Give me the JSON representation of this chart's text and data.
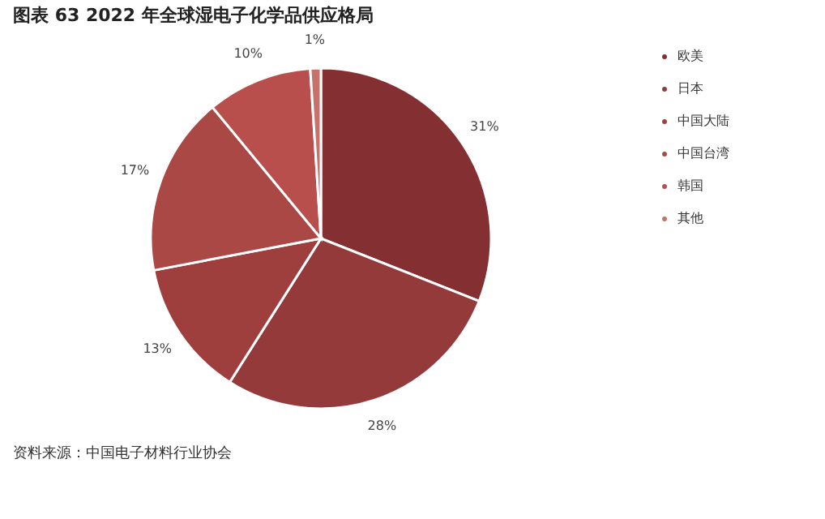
{
  "chart_data": {
    "type": "pie",
    "title": "图表 63 2022 年全球湿电子化学品供应格局",
    "categories": [
      "欧美",
      "日本",
      "中国大陆",
      "中国台湾",
      "韩国",
      "其他"
    ],
    "values": [
      31,
      28,
      13,
      17,
      10,
      1
    ],
    "colors": [
      "#842f32",
      "#943a3a",
      "#9e3f3e",
      "#aa4846",
      "#b84f4c",
      "#c8706a"
    ],
    "value_labels": [
      "31%",
      "28%",
      "13%",
      "17%",
      "10%",
      "1%"
    ],
    "legend": "right",
    "annotations": [
      "资料来源：中国电子材料行业协会"
    ]
  }
}
